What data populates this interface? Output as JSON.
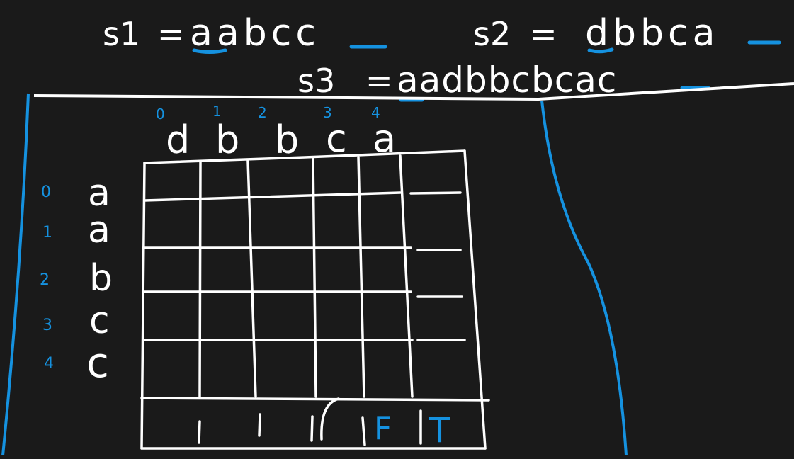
{
  "board": {
    "s1_label": "s1",
    "s1_eq": "=",
    "s1_value": "aabcc",
    "s2_label": "s2",
    "s2_eq": "=",
    "s2_value": "dbbca",
    "s3_label": "s3",
    "s3_eq": "=",
    "s3_value": "aadbbcbcac"
  },
  "grid": {
    "column_chars": [
      "d",
      "b",
      "b",
      "c",
      "a"
    ],
    "column_indices": [
      "0",
      "1",
      "2",
      "3",
      "4"
    ],
    "row_chars": [
      "a",
      "a",
      "b",
      "c",
      "c"
    ],
    "row_indices": [
      "0",
      "1",
      "2",
      "3",
      "4"
    ],
    "bottom_row": [
      "F",
      "T"
    ]
  },
  "colors": {
    "background": "#1a1a1a",
    "chalk": "#ffffff",
    "accent": "#1592e0"
  }
}
